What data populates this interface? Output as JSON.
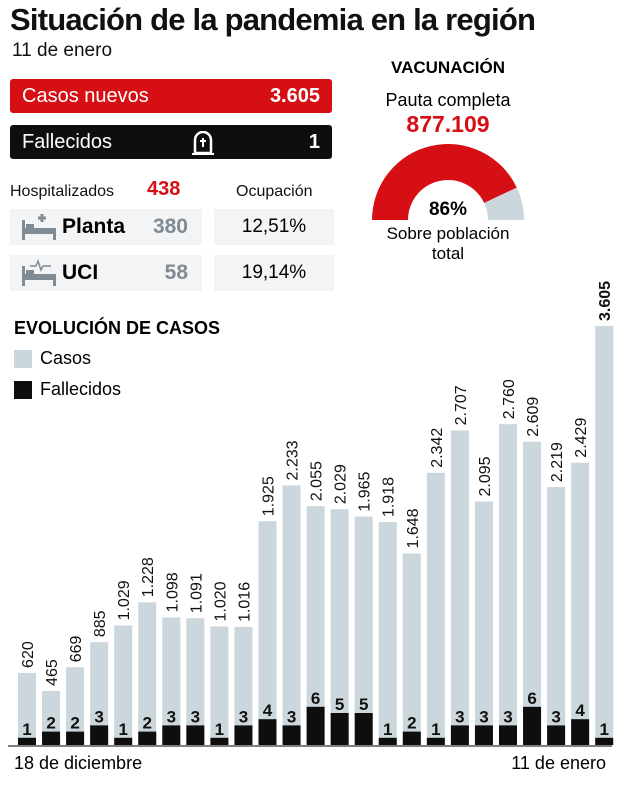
{
  "title": "Situación de la pandemia en la región",
  "date": "11 de enero",
  "casos_nuevos": {
    "label": "Casos nuevos",
    "value": "3.605"
  },
  "fallecidos": {
    "label": "Fallecidos",
    "value": "1",
    "icon": "tombstone-icon"
  },
  "hospital": {
    "label": "Hospitalizados",
    "total": "438",
    "ocupacion_label": "Ocupación",
    "rows": [
      {
        "label": "Planta",
        "value": "380",
        "ocupacion": "12,51%",
        "icon": "hospital-bed-icon"
      },
      {
        "label": "UCI",
        "value": "58",
        "ocupacion": "19,14%",
        "icon": "icu-bed-icon"
      }
    ]
  },
  "vacunacion": {
    "title": "VACUNACIÓN",
    "subtitle": "Pauta completa",
    "value": "877.109",
    "percent_label": "86%",
    "percent": 86,
    "caption1": "Sobre población",
    "caption2": "total"
  },
  "colors": {
    "red": "#d50f14",
    "black": "#0e0e0e",
    "casos": "#cbd6dd"
  },
  "chart_data": {
    "type": "bar",
    "title": "EVOLUCIÓN DE CASOS",
    "x_start_label": "18 de diciembre",
    "x_end_label": "11 de enero",
    "legend": "top-left",
    "series": [
      {
        "name": "Casos",
        "color": "#cbd6dd",
        "values": [
          620,
          465,
          669,
          885,
          1029,
          1228,
          1098,
          1091,
          1020,
          1016,
          1925,
          2233,
          2055,
          2029,
          1965,
          1918,
          1648,
          2342,
          2707,
          2095,
          2760,
          2609,
          2219,
          2429,
          3605
        ],
        "labels": [
          "620",
          "465",
          "669",
          "885",
          "1.029",
          "1.228",
          "1.098",
          "1.091",
          "1.020",
          "1.016",
          "1.925",
          "2.233",
          "2.055",
          "2.029",
          "1.965",
          "1.918",
          "1.648",
          "2.342",
          "2.707",
          "2.095",
          "2.760",
          "2.609",
          "2.219",
          "2.429",
          "3.605"
        ]
      },
      {
        "name": "Fallecidos",
        "color": "#0e0e0e",
        "values": [
          1,
          2,
          2,
          3,
          1,
          2,
          3,
          3,
          1,
          3,
          4,
          3,
          6,
          5,
          5,
          1,
          2,
          1,
          3,
          3,
          3,
          6,
          3,
          4,
          1
        ]
      }
    ]
  }
}
